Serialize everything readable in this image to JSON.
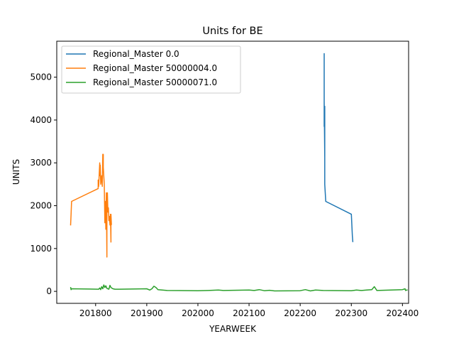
{
  "chart_data": {
    "type": "line",
    "title": "Units for BE",
    "xlabel": "YEARWEEK",
    "ylabel": "UNITS",
    "xlim": [
      201724,
      202412
    ],
    "ylim": [
      -280,
      5840
    ],
    "xticks": [
      201800,
      201900,
      202000,
      202100,
      202200,
      202300,
      202400
    ],
    "yticks": [
      0,
      1000,
      2000,
      3000,
      4000,
      5000
    ],
    "grid": false,
    "legend_position": "top-left",
    "series": [
      {
        "name": "Regional_Master 0.0",
        "color": "#1f77b4",
        "points": [
          [
            202247,
            5560
          ],
          [
            202247,
            3850
          ],
          [
            202247,
            4450
          ],
          [
            202248,
            3130
          ],
          [
            202248,
            4320
          ],
          [
            202248,
            2500
          ],
          [
            202249,
            2300
          ],
          [
            202250,
            2100
          ],
          [
            202300,
            1800
          ],
          [
            202302,
            1300
          ],
          [
            202303,
            1150
          ]
        ]
      },
      {
        "name": "Regional_Master 50000004.0",
        "color": "#ff7f0e",
        "points": [
          [
            201751,
            1540
          ],
          [
            201752,
            1800
          ],
          [
            201753,
            2100
          ],
          [
            201805,
            2400
          ],
          [
            201805,
            2600
          ],
          [
            201806,
            2450
          ],
          [
            201808,
            3000
          ],
          [
            201808,
            2700
          ],
          [
            201809,
            2950
          ],
          [
            201810,
            2500
          ],
          [
            201812,
            2700
          ],
          [
            201813,
            2450
          ],
          [
            201814,
            3200
          ],
          [
            201815,
            3200
          ],
          [
            201815,
            2900
          ],
          [
            201817,
            2500
          ],
          [
            201818,
            1600
          ],
          [
            201819,
            2100
          ],
          [
            201820,
            1450
          ],
          [
            201821,
            2300
          ],
          [
            201822,
            800
          ],
          [
            201822,
            1900
          ],
          [
            201823,
            2300
          ],
          [
            201824,
            1850
          ],
          [
            201825,
            1950
          ],
          [
            201826,
            1650
          ],
          [
            201827,
            1750
          ],
          [
            201828,
            1550
          ],
          [
            201829,
            1800
          ],
          [
            201830,
            1150
          ],
          [
            201830,
            1800
          ],
          [
            201831,
            1550
          ]
        ]
      },
      {
        "name": "Regional_Master 50000071.0",
        "color": "#2ca02c",
        "points": [
          [
            201751,
            100
          ],
          [
            201752,
            40
          ],
          [
            201753,
            60
          ],
          [
            201806,
            50
          ],
          [
            201808,
            80
          ],
          [
            201810,
            40
          ],
          [
            201812,
            110
          ],
          [
            201814,
            60
          ],
          [
            201816,
            150
          ],
          [
            201818,
            90
          ],
          [
            201820,
            130
          ],
          [
            201822,
            70
          ],
          [
            201824,
            60
          ],
          [
            201826,
            50
          ],
          [
            201828,
            140
          ],
          [
            201830,
            90
          ],
          [
            201834,
            60
          ],
          [
            201838,
            50
          ],
          [
            201845,
            50
          ],
          [
            201900,
            60
          ],
          [
            201906,
            30
          ],
          [
            201910,
            60
          ],
          [
            201914,
            120
          ],
          [
            201918,
            90
          ],
          [
            201922,
            40
          ],
          [
            201930,
            30
          ],
          [
            201940,
            20
          ],
          [
            202000,
            15
          ],
          [
            202020,
            20
          ],
          [
            202040,
            30
          ],
          [
            202050,
            20
          ],
          [
            202100,
            30
          ],
          [
            202110,
            20
          ],
          [
            202120,
            40
          ],
          [
            202130,
            15
          ],
          [
            202140,
            25
          ],
          [
            202150,
            10
          ],
          [
            202200,
            15
          ],
          [
            202210,
            40
          ],
          [
            202220,
            10
          ],
          [
            202230,
            30
          ],
          [
            202245,
            20
          ],
          [
            202300,
            15
          ],
          [
            202310,
            30
          ],
          [
            202320,
            20
          ],
          [
            202330,
            30
          ],
          [
            202340,
            40
          ],
          [
            202345,
            110
          ],
          [
            202350,
            20
          ],
          [
            202400,
            40
          ],
          [
            202405,
            60
          ],
          [
            202406,
            20
          ],
          [
            202408,
            30
          ],
          [
            202410,
            30
          ]
        ]
      }
    ]
  }
}
